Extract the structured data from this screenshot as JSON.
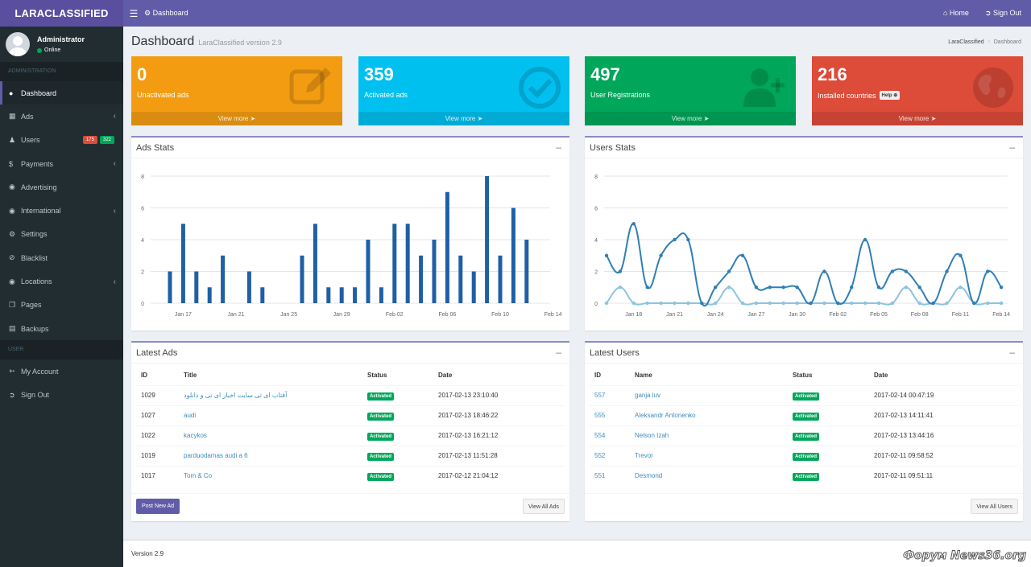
{
  "app": {
    "logo": "LARACLASSIFIED"
  },
  "topbar": {
    "toggle_icon": "menu-icon",
    "breadcrumb": "Dashboard",
    "home": "Home",
    "sign_out": "Sign Out"
  },
  "sidebar": {
    "user": {
      "name": "Administrator",
      "status": "Online"
    },
    "admin_header": "ADMINISTRATION",
    "items": [
      {
        "label": "Dashboard",
        "icon": "dashboard-icon"
      },
      {
        "label": "Ads",
        "icon": "table-icon"
      },
      {
        "label": "Users",
        "icon": "users-icon",
        "badge1": "175",
        "badge2": "322"
      },
      {
        "label": "Payments",
        "icon": "dollar-icon"
      },
      {
        "label": "Advertising",
        "icon": "globe-icon"
      },
      {
        "label": "International",
        "icon": "globe-icon"
      },
      {
        "label": "Settings",
        "icon": "gear-icon"
      },
      {
        "label": "Blacklist",
        "icon": "ban-icon"
      },
      {
        "label": "Locations",
        "icon": "globe-icon"
      },
      {
        "label": "Pages",
        "icon": "pages-icon"
      },
      {
        "label": "Backups",
        "icon": "database-icon"
      }
    ],
    "user_header": "USER",
    "user_items": [
      {
        "label": "My Account",
        "icon": "sign-in-icon"
      },
      {
        "label": "Sign Out",
        "icon": "sign-out-icon"
      }
    ]
  },
  "page": {
    "title": "Dashboard",
    "subtitle": "LaraClassified version 2.9",
    "breadcrumb_root": "LaraClassified",
    "breadcrumb_current": "Dashboard"
  },
  "boxes": [
    {
      "value": "0",
      "label": "Unactivated ads",
      "more": "View more",
      "color": "#f39c12",
      "icon": "edit-icon"
    },
    {
      "value": "359",
      "label": "Activated ads",
      "more": "View more",
      "color": "#00c0ef",
      "icon": "check-circle-icon"
    },
    {
      "value": "497",
      "label": "User Registrations",
      "more": "View more",
      "color": "#00a65a",
      "icon": "user-plus-icon"
    },
    {
      "value": "216",
      "label": "Installed countries",
      "help": "Help",
      "more": "View more",
      "color": "#dd4b39",
      "icon": "globe-icon"
    }
  ],
  "ads_stats": {
    "title": "Ads Stats"
  },
  "users_stats": {
    "title": "Users Stats"
  },
  "latest_ads": {
    "title": "Latest Ads",
    "columns": [
      "ID",
      "Title",
      "Status",
      "Date"
    ],
    "rows": [
      {
        "id": "1029",
        "title": "آفتاب ای تی سایت اخبار ای تی و دانلود",
        "status": "Activated",
        "date": "2017-02-13 23:10:40"
      },
      {
        "id": "1027",
        "title": "audi",
        "status": "Activated",
        "date": "2017-02-13 18:46:22"
      },
      {
        "id": "1022",
        "title": "kacykos",
        "status": "Activated",
        "date": "2017-02-13 16:21:12"
      },
      {
        "id": "1019",
        "title": "parduodamas audi a 6",
        "status": "Activated",
        "date": "2017-02-13 11:51:28"
      },
      {
        "id": "1017",
        "title": "Tom & Co",
        "status": "Activated",
        "date": "2017-02-12 21:04:12"
      }
    ],
    "post_button": "Post New Ad",
    "view_all": "View All Ads"
  },
  "latest_users": {
    "title": "Latest Users",
    "columns": [
      "ID",
      "Name",
      "Status",
      "Date"
    ],
    "rows": [
      {
        "id": "557",
        "name": "ganja luv",
        "status": "Activated",
        "date": "2017-02-14 00:47:19"
      },
      {
        "id": "555",
        "name": "Aleksandr Antonenko",
        "status": "Activated",
        "date": "2017-02-13 14:11:41"
      },
      {
        "id": "554",
        "name": "Nelson Izah",
        "status": "Activated",
        "date": "2017-02-13 13:44:16"
      },
      {
        "id": "552",
        "name": "Trevor",
        "status": "Activated",
        "date": "2017-02-11 09:58:52"
      },
      {
        "id": "551",
        "name": "Desmond",
        "status": "Activated",
        "date": "2017-02-11 09:51:11"
      }
    ],
    "view_all": "View All Users"
  },
  "footer": {
    "version": "Version 2.9",
    "watermark": "Форум News36.org"
  },
  "chart_data": [
    {
      "type": "bar",
      "ylim": [
        0,
        8
      ],
      "yticks": [
        0,
        2,
        4,
        6,
        8
      ],
      "x_tick_labels": [
        "Jan 17",
        "Jan 21",
        "Jan 25",
        "Jan 29",
        "Feb 02",
        "Feb 06",
        "Feb 10",
        "Feb 14"
      ],
      "categories": [
        "Jan 16",
        "Jan 17",
        "Jan 18",
        "Jan 19",
        "Jan 20",
        "Jan 21",
        "Jan 22",
        "Jan 23",
        "Jan 24",
        "Jan 25",
        "Jan 26",
        "Jan 27",
        "Jan 28",
        "Jan 29",
        "Jan 30",
        "Jan 31",
        "Feb 01",
        "Feb 02",
        "Feb 03",
        "Feb 04",
        "Feb 05",
        "Feb 06",
        "Feb 07",
        "Feb 08",
        "Feb 09",
        "Feb 10",
        "Feb 11",
        "Feb 12",
        "Feb 13",
        "Feb 14"
      ],
      "values": [
        2,
        5,
        2,
        1,
        3,
        0,
        2,
        1,
        0,
        0,
        3,
        5,
        1,
        1,
        1,
        4,
        1,
        5,
        5,
        3,
        4,
        7,
        3,
        2,
        8,
        3,
        6,
        4,
        0,
        0
      ],
      "color": "#1f5fa5"
    },
    {
      "type": "line",
      "ylim": [
        0,
        8
      ],
      "yticks": [
        0,
        2,
        4,
        6,
        8
      ],
      "x_tick_labels": [
        "Jan 18",
        "Jan 21",
        "Jan 24",
        "Jan 27",
        "Jan 30",
        "Feb 02",
        "Feb 05",
        "Feb 08",
        "Feb 11",
        "Feb 14"
      ],
      "categories": [
        "Jan 16",
        "Jan 17",
        "Jan 18",
        "Jan 19",
        "Jan 20",
        "Jan 21",
        "Jan 22",
        "Jan 23",
        "Jan 24",
        "Jan 25",
        "Jan 26",
        "Jan 27",
        "Jan 28",
        "Jan 29",
        "Jan 30",
        "Jan 31",
        "Feb 01",
        "Feb 02",
        "Feb 03",
        "Feb 04",
        "Feb 05",
        "Feb 06",
        "Feb 07",
        "Feb 08",
        "Feb 09",
        "Feb 10",
        "Feb 11",
        "Feb 12",
        "Feb 13",
        "Feb 14"
      ],
      "series": [
        {
          "values": [
            3,
            2,
            5,
            1,
            3,
            4,
            4,
            0,
            1,
            2,
            3,
            1,
            1,
            1,
            1,
            0,
            2,
            0,
            1,
            4,
            1,
            2,
            2,
            1,
            0,
            2,
            3,
            0,
            2,
            1
          ],
          "color": "#2f7fb5"
        },
        {
          "values": [
            0,
            1,
            0,
            0,
            0,
            0,
            0,
            0,
            0,
            1,
            0,
            0,
            0,
            0,
            0,
            0,
            0,
            0,
            0,
            0,
            0,
            0,
            1,
            0,
            0,
            0,
            1,
            0,
            0,
            0
          ],
          "color": "#8cc4e0"
        }
      ]
    }
  ]
}
